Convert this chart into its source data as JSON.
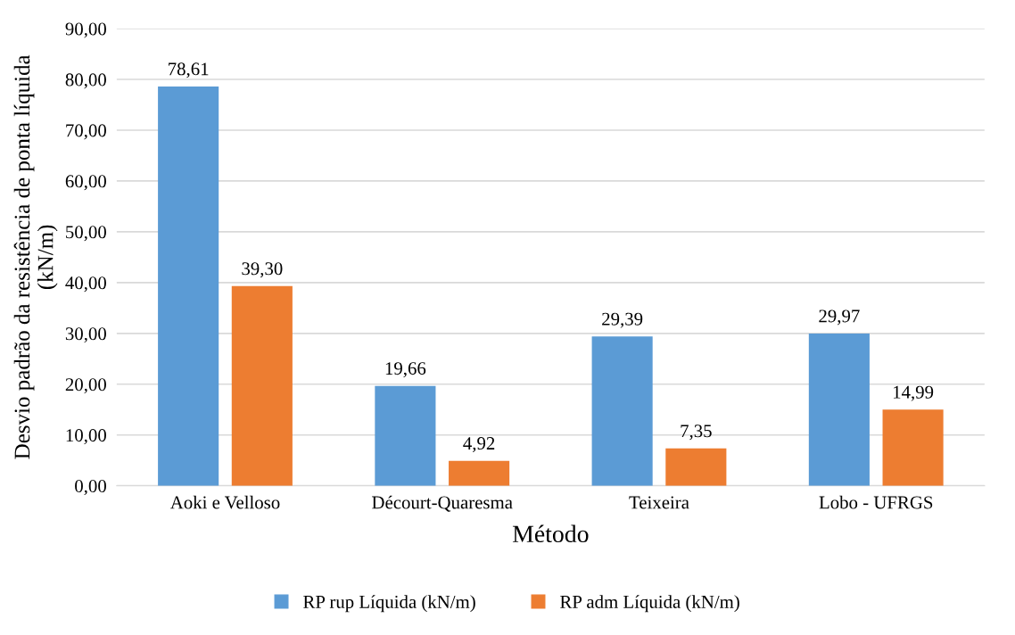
{
  "chart_data": {
    "type": "bar",
    "xlabel": "Método",
    "ylabel": "Desvio padrão da resistência de ponta líquida\n(kN/m)",
    "categories": [
      "Aoki e Velloso",
      "Décourt-Quaresma",
      "Teixeira",
      "Lobo - UFRGS"
    ],
    "series": [
      {
        "name": "RP rup Líquida (kN/m)",
        "color": "#5b9bd5",
        "values": [
          78.61,
          19.66,
          29.39,
          29.97
        ],
        "value_labels": [
          "78,61",
          "19,66",
          "29,39",
          "29,97"
        ]
      },
      {
        "name": "RP adm Líquida (kN/m)",
        "color": "#ed7d31",
        "values": [
          39.3,
          4.92,
          7.35,
          14.99
        ],
        "value_labels": [
          "39,30",
          "4,92",
          "7,35",
          "14,99"
        ]
      }
    ],
    "ylim": [
      0,
      90
    ],
    "yticks": [
      {
        "value": 0,
        "label": "0,00"
      },
      {
        "value": 10,
        "label": "10,00"
      },
      {
        "value": 20,
        "label": "20,00"
      },
      {
        "value": 30,
        "label": "30,00"
      },
      {
        "value": 40,
        "label": "40,00"
      },
      {
        "value": 50,
        "label": "50,00"
      },
      {
        "value": 60,
        "label": "60,00"
      },
      {
        "value": 70,
        "label": "70,00"
      },
      {
        "value": 80,
        "label": "80,00"
      },
      {
        "value": 90,
        "label": "90,00"
      }
    ],
    "grid": "y",
    "legend": "bottom"
  }
}
